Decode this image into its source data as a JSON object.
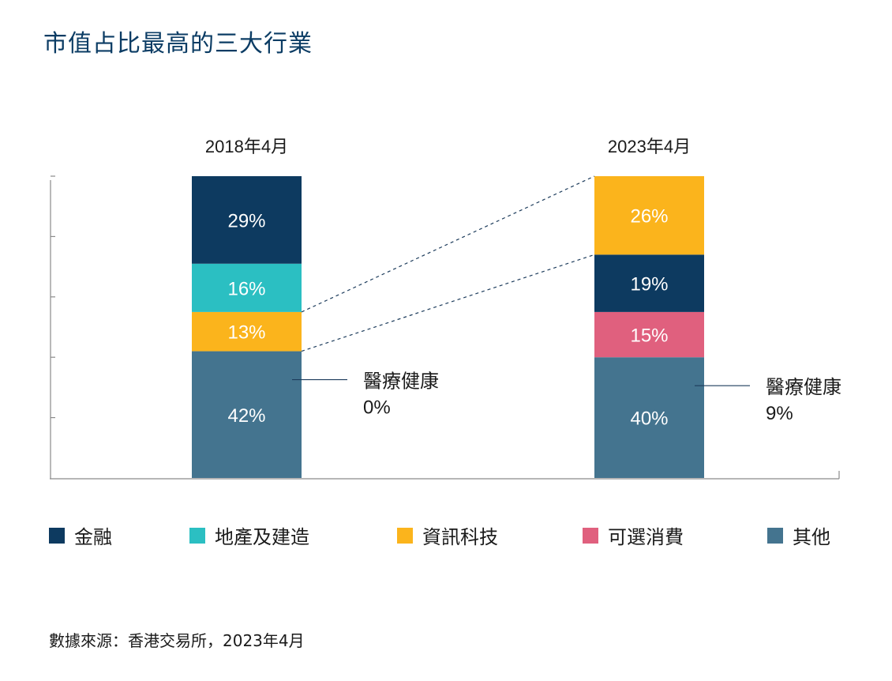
{
  "title": "市值占比最高的三大行業",
  "source": "數據來源：香港交易所，2023年4月",
  "colors": {
    "金融": "#0d3a60",
    "地產及建造": "#2bbfc2",
    "資訊科技": "#fbb41c",
    "可選消費": "#e0607e",
    "其他": "#44748f"
  },
  "legend": [
    "金融",
    "地產及建造",
    "資訊科技",
    "可選消費",
    "其他"
  ],
  "chart_data": {
    "type": "bar",
    "stacked": true,
    "categories": [
      "2018年4月",
      "2023年4月"
    ],
    "bars": [
      {
        "label": "2018年4月",
        "segments": [
          {
            "sector": "其他",
            "value": 42,
            "text": "42%"
          },
          {
            "sector": "資訊科技",
            "value": 13,
            "text": "13%"
          },
          {
            "sector": "地產及建造",
            "value": 16,
            "text": "16%"
          },
          {
            "sector": "金融",
            "value": 29,
            "text": "29%"
          }
        ],
        "callout": {
          "label": "醫療健康",
          "value": "0%"
        }
      },
      {
        "label": "2023年4月",
        "segments": [
          {
            "sector": "其他",
            "value": 40,
            "text": "40%"
          },
          {
            "sector": "可選消費",
            "value": 15,
            "text": "15%"
          },
          {
            "sector": "金融",
            "value": 19,
            "text": "19%"
          },
          {
            "sector": "資訊科技",
            "value": 26,
            "text": "26%"
          }
        ],
        "callout": {
          "label": "醫療健康",
          "value": "9%"
        }
      }
    ],
    "ylim": [
      0,
      100
    ],
    "connectors": {
      "from": "2018年4月",
      "to": "2023年4月",
      "sector": "資訊科技",
      "style": "dashed"
    }
  }
}
